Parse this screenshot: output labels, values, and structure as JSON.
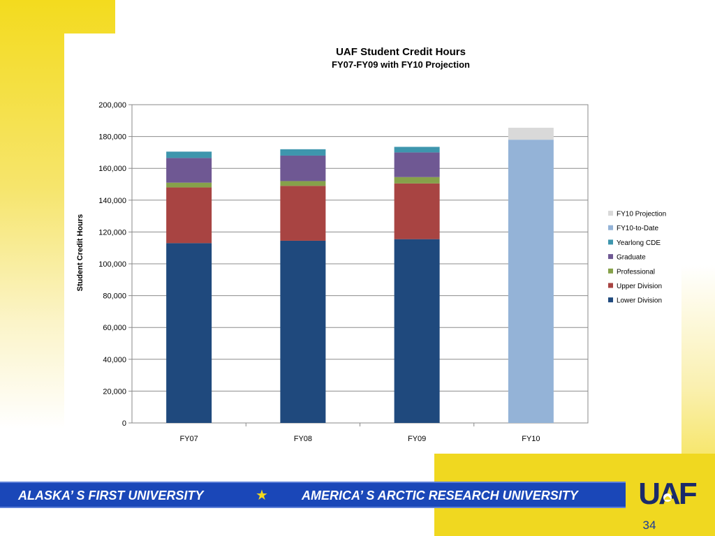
{
  "slide": {
    "footer_left": "ALASKA’ S FIRST UNIVERSITY",
    "footer_star": "★",
    "footer_right": "AMERICA’ S ARCTIC RESEARCH UNIVERSITY",
    "logo_text": "UAF",
    "page_number": "34",
    "colors": {
      "yellow": "#f3db1e",
      "footer_blue": "#1a47b8",
      "navy": "#1a2a6a"
    }
  },
  "chart_data": {
    "type": "bar",
    "stacked": true,
    "title": "UAF Student Credit Hours",
    "subtitle": "FY07-FY09 with FY10 Projection",
    "xlabel": "",
    "ylabel": "Student Credit Hours",
    "ylim": [
      0,
      200000
    ],
    "yticks": [
      0,
      20000,
      40000,
      60000,
      80000,
      100000,
      120000,
      140000,
      160000,
      180000,
      200000
    ],
    "ytick_labels": [
      "0",
      "20,000",
      "40,000",
      "60,000",
      "80,000",
      "100,000",
      "120,000",
      "140,000",
      "160,000",
      "180,000",
      "200,000"
    ],
    "categories": [
      "FY07",
      "FY08",
      "FY09",
      "FY10"
    ],
    "grid": true,
    "legend_position": "right",
    "series": [
      {
        "name": "Lower Division",
        "color": "#1f497d",
        "values": [
          113000,
          114500,
          115500,
          0
        ]
      },
      {
        "name": "Upper Division",
        "color": "#a84442",
        "values": [
          35000,
          34500,
          35000,
          0
        ]
      },
      {
        "name": "Professional",
        "color": "#86a14a",
        "values": [
          3000,
          3000,
          4000,
          0
        ]
      },
      {
        "name": "Graduate",
        "color": "#6f5893",
        "values": [
          15500,
          16000,
          15500,
          0
        ]
      },
      {
        "name": "Yearlong CDE",
        "color": "#3e96ad",
        "values": [
          4000,
          4000,
          3500,
          0
        ]
      },
      {
        "name": "FY10-to-Date",
        "color": "#94b3d7",
        "values": [
          0,
          0,
          0,
          178000
        ]
      },
      {
        "name": "FY10 Projection",
        "color": "#d9d9d9",
        "values": [
          0,
          0,
          0,
          7500
        ]
      }
    ]
  }
}
